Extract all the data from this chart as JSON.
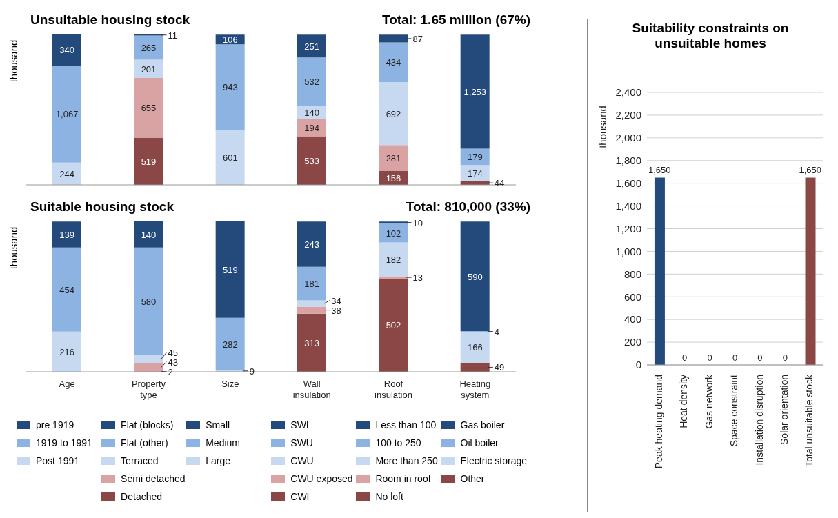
{
  "chart_data": [
    {
      "type": "bar",
      "title": "Unsuitable housing stock",
      "subtitle": "Total: 1.65 million (67%)",
      "ylabel": "thousand",
      "stacked": true,
      "tick_labels": false,
      "categories": [
        null,
        null,
        null,
        null,
        null,
        null
      ],
      "series": [
        {
          "color": "#c6d9f0",
          "values": [
            244,
            null,
            null,
            null,
            null,
            null
          ],
          "value_labels": [
            "244",
            null,
            null,
            null,
            null,
            null
          ]
        },
        {
          "color": "#8db3e2",
          "values": [
            1067,
            null,
            null,
            null,
            null,
            null
          ],
          "value_labels": [
            "1,067",
            null,
            null,
            null,
            null,
            null
          ]
        },
        {
          "color": "#244a7c",
          "values": [
            340,
            null,
            null,
            null,
            null,
            null
          ],
          "value_labels": [
            "340",
            null,
            null,
            null,
            null,
            null
          ]
        },
        {
          "color": "#8b4646",
          "values": [
            null,
            519,
            null,
            null,
            null,
            null
          ],
          "value_labels": [
            null,
            "519",
            null,
            null,
            null,
            null
          ]
        },
        {
          "color": "#d9a3a3",
          "values": [
            null,
            655,
            null,
            null,
            null,
            null
          ],
          "value_labels": [
            null,
            "655",
            null,
            null,
            null,
            null
          ]
        },
        {
          "color": "#c6d9f0",
          "values": [
            null,
            201,
            null,
            null,
            null,
            null
          ],
          "value_labels": [
            null,
            "201",
            null,
            null,
            null,
            null
          ]
        },
        {
          "color": "#8db3e2",
          "values": [
            null,
            265,
            null,
            null,
            null,
            null
          ],
          "value_labels": [
            null,
            "265",
            null,
            null,
            null,
            null
          ]
        },
        {
          "color": "#244a7c",
          "values": [
            null,
            11,
            null,
            null,
            null,
            null
          ],
          "value_labels": [
            null,
            "11",
            null,
            null,
            null,
            null
          ]
        },
        {
          "color": "#c6d9f0",
          "values": [
            null,
            null,
            601,
            null,
            null,
            null
          ],
          "value_labels": [
            null,
            null,
            "601",
            null,
            null,
            null
          ]
        },
        {
          "color": "#8db3e2",
          "values": [
            null,
            null,
            943,
            null,
            null,
            null
          ],
          "value_labels": [
            null,
            null,
            "943",
            null,
            null,
            null
          ]
        },
        {
          "color": "#244a7c",
          "values": [
            null,
            null,
            106,
            null,
            null,
            null
          ],
          "value_labels": [
            null,
            null,
            "106",
            null,
            null,
            null
          ]
        },
        {
          "color": "#8b4646",
          "values": [
            null,
            null,
            null,
            533,
            null,
            null
          ],
          "value_labels": [
            null,
            null,
            null,
            "533",
            null,
            null
          ]
        },
        {
          "color": "#d9a3a3",
          "values": [
            null,
            null,
            null,
            194,
            null,
            null
          ],
          "value_labels": [
            null,
            null,
            null,
            "194",
            null,
            null
          ]
        },
        {
          "color": "#c6d9f0",
          "values": [
            null,
            null,
            null,
            140,
            null,
            null
          ],
          "value_labels": [
            null,
            null,
            null,
            "140",
            null,
            null
          ]
        },
        {
          "color": "#8db3e2",
          "values": [
            null,
            null,
            null,
            532,
            null,
            null
          ],
          "value_labels": [
            null,
            null,
            null,
            "532",
            null,
            null
          ]
        },
        {
          "color": "#244a7c",
          "values": [
            null,
            null,
            null,
            251,
            null,
            null
          ],
          "value_labels": [
            null,
            null,
            null,
            "251",
            null,
            null
          ]
        },
        {
          "color": "#8b4646",
          "values": [
            null,
            null,
            null,
            null,
            156,
            null
          ],
          "value_labels": [
            null,
            null,
            null,
            null,
            "156",
            null
          ]
        },
        {
          "color": "#d9a3a3",
          "values": [
            null,
            null,
            null,
            null,
            281,
            null
          ],
          "value_labels": [
            null,
            null,
            null,
            null,
            "281",
            null
          ]
        },
        {
          "color": "#c6d9f0",
          "values": [
            null,
            null,
            null,
            null,
            692,
            null
          ],
          "value_labels": [
            null,
            null,
            null,
            null,
            "692",
            null
          ]
        },
        {
          "color": "#8db3e2",
          "values": [
            null,
            null,
            null,
            null,
            434,
            null
          ],
          "value_labels": [
            null,
            null,
            null,
            null,
            "434",
            null
          ]
        },
        {
          "color": "#244a7c",
          "values": [
            null,
            null,
            null,
            null,
            87,
            null
          ],
          "value_labels": [
            null,
            null,
            null,
            null,
            "87",
            null
          ]
        },
        {
          "color": "#8b4646",
          "values": [
            null,
            null,
            null,
            null,
            null,
            44
          ],
          "value_labels": [
            null,
            null,
            null,
            null,
            null,
            "44"
          ]
        },
        {
          "color": "#c6d9f0",
          "values": [
            null,
            null,
            null,
            null,
            null,
            174
          ],
          "value_labels": [
            null,
            null,
            null,
            null,
            null,
            "174"
          ]
        },
        {
          "color": "#8db3e2",
          "values": [
            null,
            null,
            null,
            null,
            null,
            179
          ],
          "value_labels": [
            null,
            null,
            null,
            null,
            null,
            "179"
          ]
        },
        {
          "color": "#244a7c",
          "values": [
            null,
            null,
            null,
            null,
            null,
            1253
          ],
          "value_labels": [
            null,
            null,
            null,
            null,
            null,
            "1,253"
          ]
        }
      ]
    },
    {
      "type": "bar",
      "title": "Suitable housing stock",
      "subtitle": "Total: 810,000 (33%)",
      "ylabel": "thousand",
      "stacked": true,
      "tick_labels": "x",
      "legend": "bottom",
      "categories": [
        "Age",
        "Property type",
        "Size",
        "Wall insulation",
        "Roof insulation",
        "Heating system"
      ],
      "series": [
        {
          "name": "Post 1991",
          "color": "#c6d9f0",
          "values": [
            216,
            null,
            null,
            null,
            null,
            null
          ],
          "value_labels": [
            "216",
            null,
            null,
            null,
            null,
            null
          ]
        },
        {
          "name": "1919 to 1991",
          "color": "#8db3e2",
          "values": [
            454,
            null,
            null,
            null,
            null,
            null
          ],
          "value_labels": [
            "454",
            null,
            null,
            null,
            null,
            null
          ]
        },
        {
          "name": "pre 1919",
          "color": "#244a7c",
          "values": [
            139,
            null,
            null,
            null,
            null,
            null
          ],
          "value_labels": [
            "139",
            null,
            null,
            null,
            null,
            null
          ]
        },
        {
          "name": "Detached",
          "color": "#8b4646",
          "values": [
            null,
            2,
            null,
            null,
            null,
            null
          ],
          "value_labels": [
            null,
            "2",
            null,
            null,
            null,
            null
          ]
        },
        {
          "name": "Semi detached",
          "color": "#d9a3a3",
          "values": [
            null,
            43,
            null,
            null,
            null,
            null
          ],
          "value_labels": [
            null,
            "43",
            null,
            null,
            null,
            null
          ]
        },
        {
          "name": "Terraced",
          "color": "#c6d9f0",
          "values": [
            null,
            45,
            null,
            null,
            null,
            null
          ],
          "value_labels": [
            null,
            "45",
            null,
            null,
            null,
            null
          ]
        },
        {
          "name": "Flat (other)",
          "color": "#8db3e2",
          "values": [
            null,
            580,
            null,
            null,
            null,
            null
          ],
          "value_labels": [
            null,
            "580",
            null,
            null,
            null,
            null
          ]
        },
        {
          "name": "Flat (blocks)",
          "color": "#244a7c",
          "values": [
            null,
            140,
            null,
            null,
            null,
            null
          ],
          "value_labels": [
            null,
            "140",
            null,
            null,
            null,
            null
          ]
        },
        {
          "name": "Large",
          "color": "#c6d9f0",
          "values": [
            null,
            null,
            9,
            null,
            null,
            null
          ],
          "value_labels": [
            null,
            null,
            "9",
            null,
            null,
            null
          ]
        },
        {
          "name": "Medium",
          "color": "#8db3e2",
          "values": [
            null,
            null,
            282,
            null,
            null,
            null
          ],
          "value_labels": [
            null,
            null,
            "282",
            null,
            null,
            null
          ]
        },
        {
          "name": "Small",
          "color": "#244a7c",
          "values": [
            null,
            null,
            519,
            null,
            null,
            null
          ],
          "value_labels": [
            null,
            null,
            "519",
            null,
            null,
            null
          ]
        },
        {
          "name": "CWI",
          "color": "#8b4646",
          "values": [
            null,
            null,
            null,
            313,
            null,
            null
          ],
          "value_labels": [
            null,
            null,
            null,
            "313",
            null,
            null
          ]
        },
        {
          "name": "CWU exposed",
          "color": "#d9a3a3",
          "values": [
            null,
            null,
            null,
            38,
            null,
            null
          ],
          "value_labels": [
            null,
            null,
            null,
            "38",
            null,
            null
          ]
        },
        {
          "name": "CWU",
          "color": "#c6d9f0",
          "values": [
            null,
            null,
            null,
            34,
            null,
            null
          ],
          "value_labels": [
            null,
            null,
            null,
            "34",
            null,
            null
          ]
        },
        {
          "name": "SWU",
          "color": "#8db3e2",
          "values": [
            null,
            null,
            null,
            181,
            null,
            null
          ],
          "value_labels": [
            null,
            null,
            null,
            "181",
            null,
            null
          ]
        },
        {
          "name": "SWI",
          "color": "#244a7c",
          "values": [
            null,
            null,
            null,
            243,
            null,
            null
          ],
          "value_labels": [
            null,
            null,
            null,
            "243",
            null,
            null
          ]
        },
        {
          "name": "No loft",
          "color": "#8b4646",
          "values": [
            null,
            null,
            null,
            null,
            502,
            null
          ],
          "value_labels": [
            null,
            null,
            null,
            null,
            "502",
            null
          ]
        },
        {
          "name": "Room in roof",
          "color": "#d9a3a3",
          "values": [
            null,
            null,
            null,
            null,
            13,
            null
          ],
          "value_labels": [
            null,
            null,
            null,
            null,
            "13",
            null
          ]
        },
        {
          "name": "More than 250",
          "color": "#c6d9f0",
          "values": [
            null,
            null,
            null,
            null,
            182,
            null
          ],
          "value_labels": [
            null,
            null,
            null,
            null,
            "182",
            null
          ]
        },
        {
          "name": "100 to 250",
          "color": "#8db3e2",
          "values": [
            null,
            null,
            null,
            null,
            102,
            null
          ],
          "value_labels": [
            null,
            null,
            null,
            null,
            "102",
            null
          ]
        },
        {
          "name": "Less than 100",
          "color": "#244a7c",
          "values": [
            null,
            null,
            null,
            null,
            10,
            null
          ],
          "value_labels": [
            null,
            null,
            null,
            null,
            "10",
            null
          ]
        },
        {
          "name": "Other",
          "color": "#8b4646",
          "values": [
            null,
            null,
            null,
            null,
            null,
            49
          ],
          "value_labels": [
            null,
            null,
            null,
            null,
            null,
            "49"
          ]
        },
        {
          "name": "Electric storage",
          "color": "#c6d9f0",
          "values": [
            null,
            null,
            null,
            null,
            null,
            166
          ],
          "value_labels": [
            null,
            null,
            null,
            null,
            null,
            "166"
          ]
        },
        {
          "name": "Oil boiler",
          "color": "#8db3e2",
          "values": [
            null,
            null,
            null,
            null,
            null,
            4
          ],
          "value_labels": [
            null,
            null,
            null,
            null,
            null,
            "4"
          ]
        },
        {
          "name": "Gas boiler",
          "color": "#244a7c",
          "values": [
            null,
            null,
            null,
            null,
            null,
            590
          ],
          "value_labels": [
            null,
            null,
            null,
            null,
            null,
            "590"
          ]
        }
      ]
    },
    {
      "type": "bar",
      "title": "Suitability constraints on unsuitable homes",
      "ylabel": "thousand",
      "grid": "y",
      "categories": [
        "Peak heating demand",
        "Heat density",
        "Gas network",
        "Space constraint",
        "Installation disruption",
        "Solar orientation",
        "Total unsuitable stock"
      ],
      "values": [
        1650,
        0,
        0,
        0,
        0,
        0,
        1650
      ],
      "value_labels": [
        "1,650",
        "0",
        "0",
        "0",
        "0",
        "0",
        "1,650"
      ],
      "colors": [
        "#244a7c",
        "#244a7c",
        "#244a7c",
        "#244a7c",
        "#244a7c",
        "#244a7c",
        "#8b4646"
      ],
      "ylim": [
        0,
        2400
      ],
      "yticks": [
        0,
        200,
        400,
        600,
        800,
        {
          "value": 1000,
          "label": "1,000"
        },
        {
          "value": 1200,
          "label": "1,200"
        },
        {
          "value": 1400,
          "label": "1,400"
        },
        {
          "value": 1600,
          "label": "1,600"
        },
        {
          "value": 1800,
          "label": "1,800"
        },
        {
          "value": 2000,
          "label": "2,000"
        },
        {
          "value": 2200,
          "label": "2,200"
        },
        {
          "value": 2400,
          "label": "2,400"
        }
      ]
    }
  ]
}
